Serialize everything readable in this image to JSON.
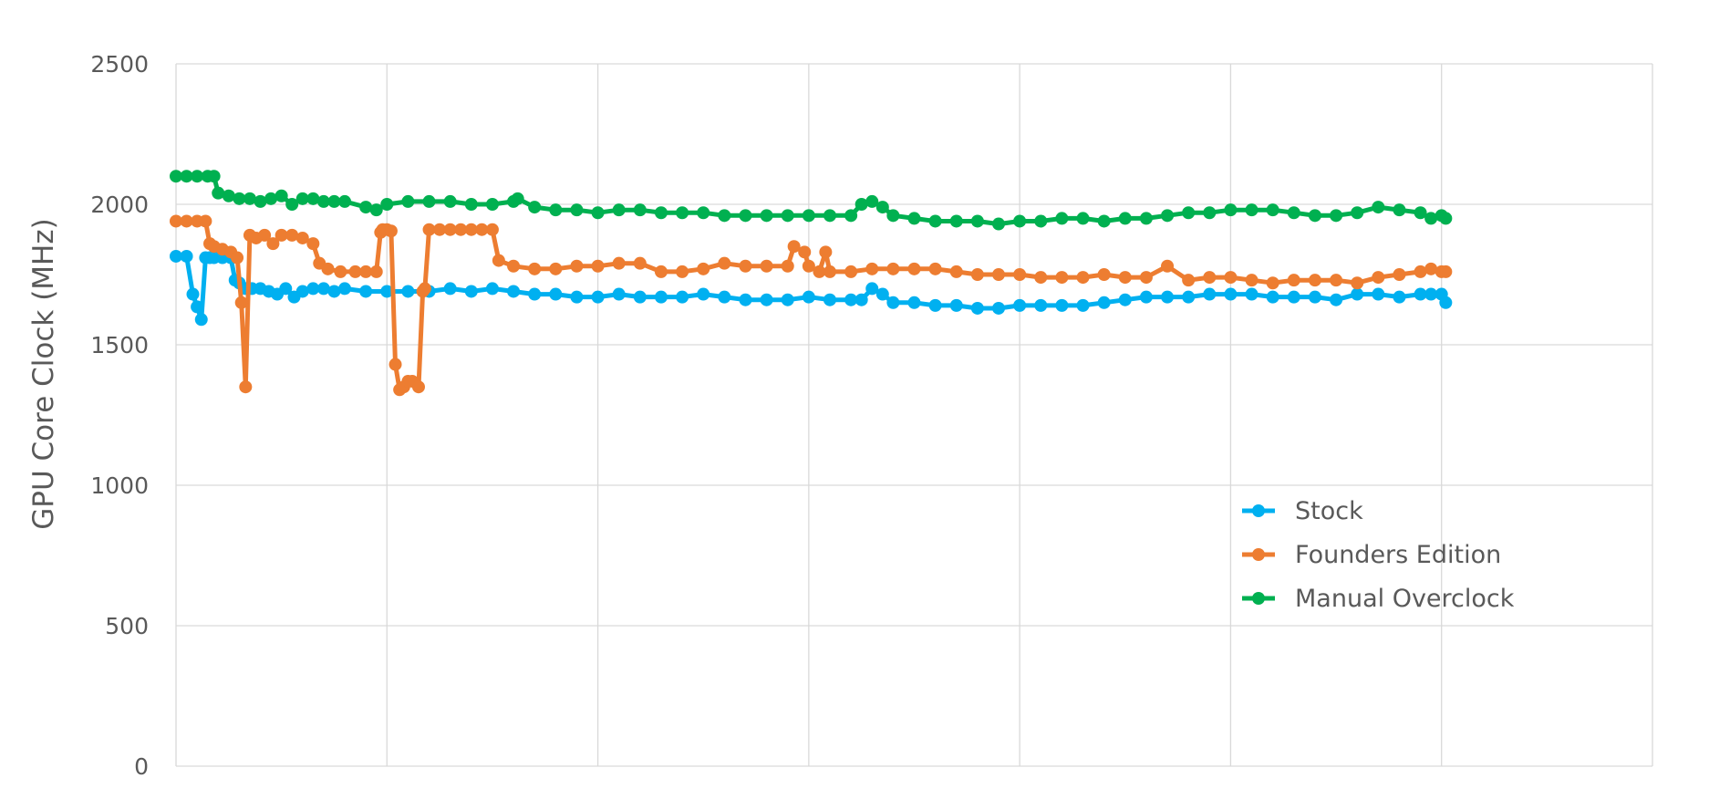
{
  "chart_data": {
    "type": "line",
    "title": "",
    "xlabel": "",
    "ylabel": "GPU Core Clock (MHz)",
    "ylim": [
      0,
      2500
    ],
    "xlim": [
      0,
      700
    ],
    "yticks": [
      0,
      500,
      1000,
      1500,
      2000,
      2500
    ],
    "ytick_labels": [
      "0",
      "500",
      "1000",
      "1500",
      "2000",
      "2500"
    ],
    "xgrid": [
      0,
      100,
      200,
      300,
      400,
      500,
      600,
      700
    ],
    "xtick_labels": [],
    "grid": true,
    "legend_position": "right",
    "series": [
      {
        "name": "Stock",
        "color": "#00B0F0",
        "x": [
          0,
          5,
          8,
          10,
          12,
          14,
          16,
          18,
          22,
          26,
          28,
          30,
          33,
          36,
          40,
          44,
          48,
          52,
          56,
          60,
          65,
          70,
          75,
          80,
          90,
          100,
          110,
          120,
          130,
          140,
          150,
          160,
          170,
          180,
          190,
          200,
          210,
          220,
          230,
          240,
          250,
          260,
          270,
          280,
          290,
          300,
          310,
          320,
          325,
          330,
          335,
          340,
          350,
          360,
          370,
          380,
          390,
          400,
          410,
          420,
          430,
          440,
          450,
          460,
          470,
          480,
          490,
          500,
          510,
          520,
          530,
          540,
          550,
          560,
          570,
          580,
          590,
          595,
          600,
          602
        ],
        "values": [
          1815,
          1815,
          1680,
          1635,
          1590,
          1810,
          1810,
          1810,
          1810,
          1810,
          1730,
          1720,
          1700,
          1700,
          1700,
          1690,
          1680,
          1700,
          1670,
          1690,
          1700,
          1700,
          1690,
          1700,
          1690,
          1690,
          1690,
          1690,
          1700,
          1690,
          1700,
          1690,
          1680,
          1680,
          1670,
          1670,
          1680,
          1670,
          1670,
          1670,
          1680,
          1670,
          1660,
          1660,
          1660,
          1670,
          1660,
          1660,
          1660,
          1700,
          1680,
          1650,
          1650,
          1640,
          1640,
          1630,
          1630,
          1640,
          1640,
          1640,
          1640,
          1650,
          1660,
          1670,
          1670,
          1670,
          1680,
          1680,
          1680,
          1670,
          1670,
          1670,
          1660,
          1680,
          1680,
          1670,
          1680,
          1680,
          1680,
          1650
        ]
      },
      {
        "name": "Founders Edition",
        "color": "#ED7D31",
        "x": [
          0,
          5,
          10,
          14,
          16,
          18,
          22,
          26,
          29,
          31,
          33,
          35,
          38,
          42,
          46,
          50,
          55,
          60,
          65,
          68,
          72,
          78,
          85,
          90,
          95,
          97,
          98,
          100,
          102,
          104,
          106,
          108,
          110,
          112,
          115,
          117,
          118,
          120,
          125,
          130,
          135,
          140,
          145,
          150,
          153,
          160,
          170,
          180,
          190,
          200,
          210,
          220,
          230,
          240,
          250,
          260,
          270,
          280,
          290,
          293,
          298,
          300,
          305,
          308,
          310,
          320,
          330,
          340,
          350,
          360,
          370,
          380,
          390,
          400,
          410,
          420,
          430,
          440,
          450,
          460,
          470,
          480,
          490,
          500,
          510,
          520,
          530,
          540,
          550,
          560,
          570,
          580,
          590,
          595,
          600,
          602
        ],
        "values": [
          1940,
          1940,
          1940,
          1940,
          1860,
          1850,
          1840,
          1830,
          1810,
          1650,
          1350,
          1890,
          1880,
          1890,
          1860,
          1890,
          1890,
          1880,
          1860,
          1790,
          1770,
          1760,
          1760,
          1760,
          1760,
          1900,
          1910,
          1910,
          1905,
          1430,
          1340,
          1350,
          1370,
          1370,
          1350,
          1690,
          1700,
          1910,
          1910,
          1910,
          1910,
          1910,
          1910,
          1910,
          1800,
          1780,
          1770,
          1770,
          1780,
          1780,
          1790,
          1790,
          1760,
          1760,
          1770,
          1790,
          1780,
          1780,
          1780,
          1850,
          1830,
          1780,
          1760,
          1830,
          1760,
          1760,
          1770,
          1770,
          1770,
          1770,
          1760,
          1750,
          1750,
          1750,
          1740,
          1740,
          1740,
          1750,
          1740,
          1740,
          1780,
          1730,
          1740,
          1740,
          1730,
          1720,
          1730,
          1730,
          1730,
          1720,
          1740,
          1750,
          1760,
          1770,
          1760,
          1760
        ]
      },
      {
        "name": "Manual Overclock",
        "color": "#00B050",
        "x": [
          0,
          5,
          10,
          15,
          18,
          20,
          25,
          30,
          35,
          40,
          45,
          50,
          55,
          60,
          65,
          70,
          75,
          80,
          90,
          95,
          100,
          110,
          120,
          130,
          140,
          150,
          160,
          162,
          170,
          180,
          190,
          200,
          210,
          220,
          230,
          240,
          250,
          260,
          270,
          280,
          290,
          300,
          310,
          320,
          325,
          330,
          335,
          340,
          350,
          360,
          370,
          380,
          390,
          400,
          410,
          420,
          430,
          440,
          450,
          460,
          470,
          480,
          490,
          500,
          510,
          520,
          530,
          540,
          550,
          560,
          570,
          580,
          590,
          595,
          600,
          602
        ],
        "values": [
          2100,
          2100,
          2100,
          2100,
          2100,
          2040,
          2030,
          2020,
          2020,
          2010,
          2020,
          2030,
          2000,
          2020,
          2020,
          2010,
          2010,
          2010,
          1990,
          1980,
          2000,
          2010,
          2010,
          2010,
          2000,
          2000,
          2010,
          2020,
          1990,
          1980,
          1980,
          1970,
          1980,
          1980,
          1970,
          1970,
          1970,
          1960,
          1960,
          1960,
          1960,
          1960,
          1960,
          1960,
          2000,
          2010,
          1990,
          1960,
          1950,
          1940,
          1940,
          1940,
          1930,
          1940,
          1940,
          1950,
          1950,
          1940,
          1950,
          1950,
          1960,
          1970,
          1970,
          1980,
          1980,
          1980,
          1970,
          1960,
          1960,
          1970,
          1990,
          1980,
          1970,
          1950,
          1960,
          1950
        ]
      }
    ]
  }
}
